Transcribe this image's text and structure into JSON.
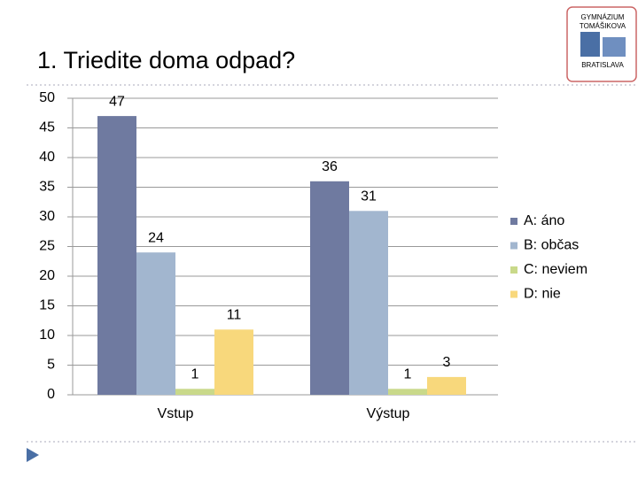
{
  "chart_data": {
    "type": "bar",
    "title": "1. Triedite doma odpad?",
    "logo": [
      "GYMNÁZIUM",
      "TOMÁŠIKOVA",
      "BRATISLAVA"
    ],
    "categories": [
      "Vstup",
      "Výstup"
    ],
    "series": [
      {
        "name": "A: áno",
        "color": "#6f7aa0",
        "values": [
          47,
          36
        ]
      },
      {
        "name": "B: občas",
        "color": "#a2b6cf",
        "values": [
          24,
          31
        ]
      },
      {
        "name": "C: neviem",
        "color": "#c9d98a",
        "values": [
          1,
          1
        ]
      },
      {
        "name": "D: nie",
        "color": "#f8d87c",
        "values": [
          11,
          3
        ]
      }
    ],
    "ylim": [
      0,
      50
    ],
    "yticks": [
      0,
      5,
      10,
      15,
      20,
      25,
      30,
      35,
      40,
      45,
      50
    ],
    "grid": true,
    "legend": "right"
  }
}
